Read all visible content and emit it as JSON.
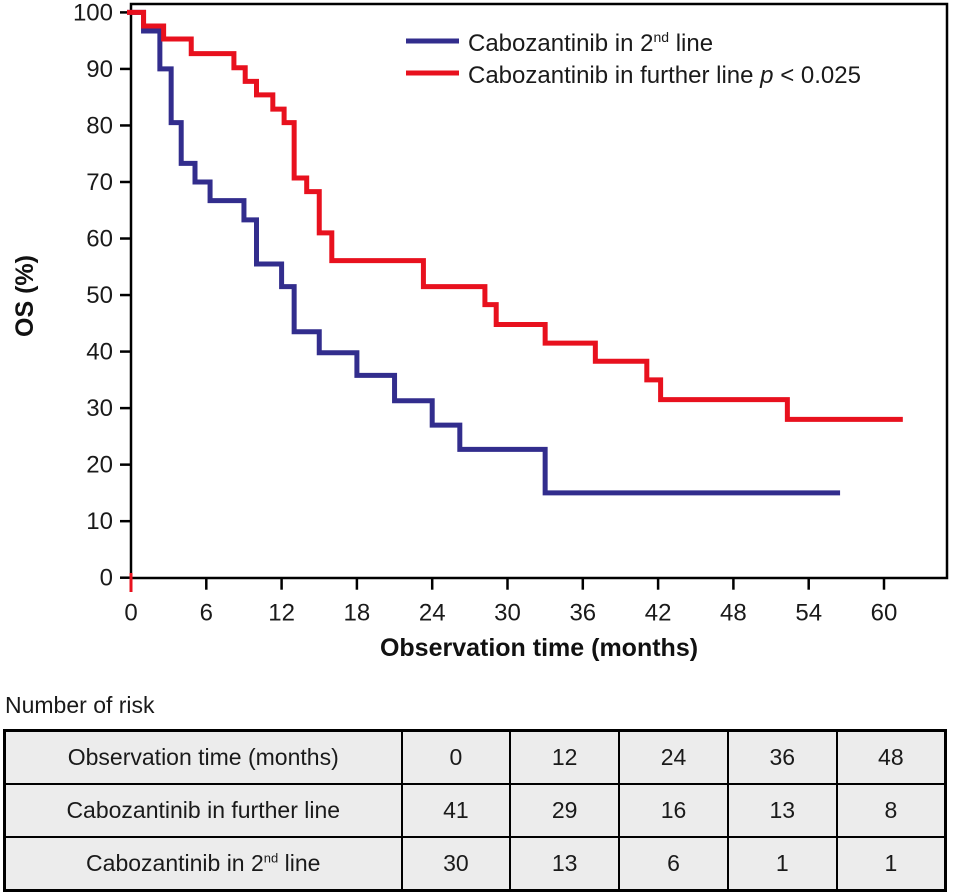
{
  "colors": {
    "series_second_line": "#322d8d",
    "series_further_line": "#e8111e",
    "axis": "#000000",
    "table_cell_bg": "#ececec"
  },
  "chart": {
    "legend": [
      {
        "label_prefix": "Cabozantinib in 2",
        "label_sup": "nd",
        "label_suffix": " line"
      },
      {
        "label": "Cabozantinib in further line ",
        "p_symbol": "p",
        "p_value": " < 0.025"
      }
    ]
  },
  "chart_data": {
    "type": "line",
    "subtype": "kaplan-meier-step",
    "title": "",
    "xlabel": "Observation time (months)",
    "ylabel": "OS (%)",
    "xlim": [
      0,
      65
    ],
    "ylim": [
      0,
      100
    ],
    "grid": false,
    "legend_position": "top-center-inside",
    "xticks": [
      0,
      6,
      12,
      18,
      24,
      30,
      36,
      42,
      48,
      54,
      60
    ],
    "yticks": [
      0,
      10,
      20,
      30,
      40,
      50,
      60,
      70,
      80,
      90,
      100
    ],
    "series": [
      {
        "name": "Cabozantinib in 2nd line",
        "color": "#322d8d",
        "end_month": 56.5,
        "points": [
          [
            0,
            100
          ],
          [
            1,
            96.7
          ],
          [
            2.3,
            90
          ],
          [
            3.2,
            80.5
          ],
          [
            4,
            73.3
          ],
          [
            5.1,
            70
          ],
          [
            6.3,
            66.7
          ],
          [
            9,
            63.3
          ],
          [
            10,
            55.5
          ],
          [
            12,
            51.5
          ],
          [
            13,
            43.5
          ],
          [
            15,
            39.8
          ],
          [
            18,
            35.8
          ],
          [
            21,
            31.3
          ],
          [
            24,
            27
          ],
          [
            26.2,
            22.7
          ],
          [
            33,
            15
          ]
        ]
      },
      {
        "name": "Cabozantinib in further line",
        "color": "#e8111e",
        "annotation": "p < 0.025",
        "end_month": 61.5,
        "points": [
          [
            0,
            100
          ],
          [
            1,
            97.6
          ],
          [
            2.6,
            95.3
          ],
          [
            4.8,
            92.7
          ],
          [
            8.2,
            90.2
          ],
          [
            9.1,
            87.8
          ],
          [
            10,
            85.4
          ],
          [
            11.3,
            82.9
          ],
          [
            12.2,
            80.5
          ],
          [
            13,
            70.7
          ],
          [
            14,
            68.3
          ],
          [
            15,
            61
          ],
          [
            16,
            56.1
          ],
          [
            23.3,
            51.5
          ],
          [
            28.2,
            48.3
          ],
          [
            29.1,
            44.8
          ],
          [
            33,
            41.5
          ],
          [
            37,
            38.3
          ],
          [
            41.1,
            35
          ],
          [
            42.2,
            31.5
          ],
          [
            52.3,
            28
          ]
        ]
      }
    ]
  },
  "risk_table": {
    "title": "Number of risk",
    "rows": [
      {
        "cells": [
          "Observation time (months)",
          "0",
          "12",
          "24",
          "36",
          "48"
        ]
      },
      {
        "cells": [
          "Cabozantinib in further line",
          "41",
          "29",
          "16",
          "13",
          "8"
        ]
      },
      {
        "label_prefix": "Cabozantinib in 2",
        "label_sup": "nd",
        "label_suffix": " line",
        "cells": [
          "",
          "30",
          "13",
          "6",
          "1",
          "1"
        ]
      }
    ]
  }
}
